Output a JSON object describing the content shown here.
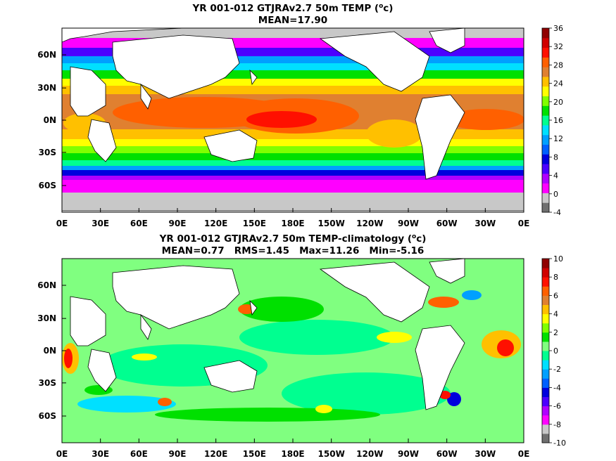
{
  "chart_data": [
    {
      "type": "heatmap",
      "title": "YR 001-012 GTJRAv2.7 50m TEMP (",
      "title_unit": "o",
      "title_unit_tail": "c)",
      "subtitle": "MEAN=17.90",
      "xticks": [
        "0E",
        "30E",
        "60E",
        "90E",
        "120E",
        "150E",
        "180E",
        "150W",
        "120W",
        "90W",
        "60W",
        "30W",
        "0E"
      ],
      "yticks": [
        "60N",
        "30N",
        "0N",
        "30S",
        "60S"
      ],
      "colorbar": {
        "ticks": [
          "36",
          "32",
          "28",
          "24",
          "20",
          "16",
          "12",
          "8",
          "4",
          "0",
          "-4"
        ],
        "range": [
          -4,
          36
        ],
        "colors": [
          "#707070",
          "#c8c8c8",
          "#ff00ff",
          "#b000ff",
          "#4b00ff",
          "#0000dd",
          "#0060ff",
          "#00a0ff",
          "#00e0ff",
          "#00ff90",
          "#00e000",
          "#80ff00",
          "#ffff00",
          "#ffc000",
          "#e08030",
          "#ff6000",
          "#ff1000",
          "#d00000",
          "#900000"
        ]
      }
    },
    {
      "type": "heatmap",
      "title": "YR 001-012 GTJRAv2.7 50m TEMP-climatology (",
      "title_unit": "o",
      "title_unit_tail": "c)",
      "subtitle": "MEAN=0.77   RMS=1.45   Max=11.26   Min=-5.16",
      "xticks": [
        "0E",
        "30E",
        "60E",
        "90E",
        "120E",
        "150E",
        "180E",
        "150W",
        "120W",
        "90W",
        "60W",
        "30W",
        "0E"
      ],
      "yticks": [
        "60N",
        "30N",
        "0N",
        "30S",
        "60S"
      ],
      "colorbar": {
        "ticks": [
          "10",
          "8",
          "6",
          "4",
          "2",
          "0",
          "-2",
          "-4",
          "-6",
          "-8",
          "-10"
        ],
        "range": [
          -10,
          10
        ],
        "colors": [
          "#707070",
          "#c8c8c8",
          "#ff00ff",
          "#b000ff",
          "#4b00ff",
          "#0000dd",
          "#0060ff",
          "#00a0ff",
          "#00e0ff",
          "#00ff90",
          "#80ff80",
          "#00e000",
          "#80ff00",
          "#ffff00",
          "#ffc000",
          "#e08030",
          "#ff6000",
          "#ff1000",
          "#d00000",
          "#900000"
        ]
      }
    }
  ]
}
